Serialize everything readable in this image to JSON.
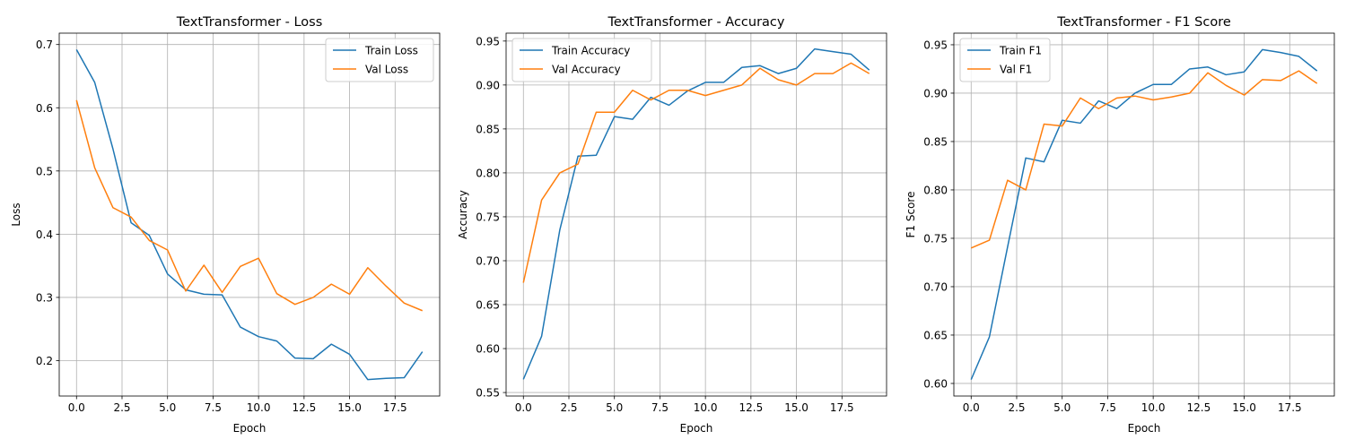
{
  "chart_data": [
    {
      "type": "line",
      "title": "TextTransformer - Loss",
      "xlabel": "Epoch",
      "ylabel": "Loss",
      "xlim": [
        -0.95,
        19.95
      ],
      "ylim": [
        0.144,
        0.718
      ],
      "xticks": [
        0.0,
        2.5,
        5.0,
        7.5,
        10.0,
        12.5,
        15.0,
        17.5
      ],
      "xtick_labels": [
        "0.0",
        "2.5",
        "5.0",
        "7.5",
        "10.0",
        "12.5",
        "15.0",
        "17.5"
      ],
      "yticks": [
        0.2,
        0.3,
        0.4,
        0.5,
        0.6,
        0.7
      ],
      "ytick_labels": [
        "0.2",
        "0.3",
        "0.4",
        "0.5",
        "0.6",
        "0.7"
      ],
      "grid": true,
      "legend_position": "upper right",
      "x": [
        0,
        1,
        2,
        3,
        4,
        5,
        6,
        7,
        8,
        9,
        10,
        11,
        12,
        13,
        14,
        15,
        16,
        17,
        18,
        19
      ],
      "series": [
        {
          "name": "Train Loss",
          "color": "#1f77b4",
          "values": [
            0.692,
            0.64,
            0.535,
            0.418,
            0.398,
            0.337,
            0.312,
            0.305,
            0.304,
            0.253,
            0.238,
            0.231,
            0.204,
            0.203,
            0.226,
            0.21,
            0.17,
            0.172,
            0.173,
            0.214
          ]
        },
        {
          "name": "Val Loss",
          "color": "#ff7f0e",
          "values": [
            0.612,
            0.505,
            0.442,
            0.427,
            0.39,
            0.375,
            0.31,
            0.351,
            0.308,
            0.349,
            0.362,
            0.306,
            0.289,
            0.3,
            0.321,
            0.305,
            0.347,
            0.318,
            0.291,
            0.279
          ]
        }
      ]
    },
    {
      "type": "line",
      "title": "TextTransformer - Accuracy",
      "xlabel": "Epoch",
      "ylabel": "Accuracy",
      "xlim": [
        -0.95,
        19.95
      ],
      "ylim": [
        0.546,
        0.959
      ],
      "xticks": [
        0.0,
        2.5,
        5.0,
        7.5,
        10.0,
        12.5,
        15.0,
        17.5
      ],
      "xtick_labels": [
        "0.0",
        "2.5",
        "5.0",
        "7.5",
        "10.0",
        "12.5",
        "15.0",
        "17.5"
      ],
      "yticks": [
        0.55,
        0.6,
        0.65,
        0.7,
        0.75,
        0.8,
        0.85,
        0.9,
        0.95
      ],
      "ytick_labels": [
        "0.55",
        "0.60",
        "0.65",
        "0.70",
        "0.75",
        "0.80",
        "0.85",
        "0.90",
        "0.95"
      ],
      "grid": true,
      "legend_position": "upper left",
      "x": [
        0,
        1,
        2,
        3,
        4,
        5,
        6,
        7,
        8,
        9,
        10,
        11,
        12,
        13,
        14,
        15,
        16,
        17,
        18,
        19
      ],
      "series": [
        {
          "name": "Train Accuracy",
          "color": "#1f77b4",
          "values": [
            0.565,
            0.614,
            0.735,
            0.819,
            0.82,
            0.864,
            0.861,
            0.886,
            0.877,
            0.893,
            0.903,
            0.903,
            0.92,
            0.922,
            0.913,
            0.919,
            0.941,
            0.938,
            0.935,
            0.917
          ]
        },
        {
          "name": "Val Accuracy",
          "color": "#ff7f0e",
          "values": [
            0.675,
            0.769,
            0.8,
            0.81,
            0.869,
            0.869,
            0.894,
            0.883,
            0.894,
            0.894,
            0.888,
            0.894,
            0.9,
            0.919,
            0.906,
            0.9,
            0.913,
            0.913,
            0.925,
            0.913
          ]
        }
      ]
    },
    {
      "type": "line",
      "title": "TextTransformer - F1 Score",
      "xlabel": "Epoch",
      "ylabel": "F1 Score",
      "xlim": [
        -0.95,
        19.95
      ],
      "ylim": [
        0.587,
        0.962
      ],
      "xticks": [
        0.0,
        2.5,
        5.0,
        7.5,
        10.0,
        12.5,
        15.0,
        17.5
      ],
      "xtick_labels": [
        "0.0",
        "2.5",
        "5.0",
        "7.5",
        "10.0",
        "12.5",
        "15.0",
        "17.5"
      ],
      "yticks": [
        0.6,
        0.65,
        0.7,
        0.75,
        0.8,
        0.85,
        0.9,
        0.95
      ],
      "ytick_labels": [
        "0.60",
        "0.65",
        "0.70",
        "0.75",
        "0.80",
        "0.85",
        "0.90",
        "0.95"
      ],
      "grid": true,
      "legend_position": "upper left",
      "x": [
        0,
        1,
        2,
        3,
        4,
        5,
        6,
        7,
        8,
        9,
        10,
        11,
        12,
        13,
        14,
        15,
        16,
        17,
        18,
        19
      ],
      "series": [
        {
          "name": "Train F1",
          "color": "#1f77b4",
          "values": [
            0.604,
            0.648,
            0.741,
            0.833,
            0.829,
            0.872,
            0.869,
            0.892,
            0.884,
            0.9,
            0.909,
            0.909,
            0.925,
            0.927,
            0.919,
            0.922,
            0.945,
            0.942,
            0.938,
            0.923
          ]
        },
        {
          "name": "Val F1",
          "color": "#ff7f0e",
          "values": [
            0.74,
            0.748,
            0.81,
            0.8,
            0.868,
            0.866,
            0.895,
            0.884,
            0.895,
            0.897,
            0.893,
            0.896,
            0.9,
            0.921,
            0.908,
            0.898,
            0.914,
            0.913,
            0.923,
            0.91
          ]
        }
      ]
    }
  ]
}
